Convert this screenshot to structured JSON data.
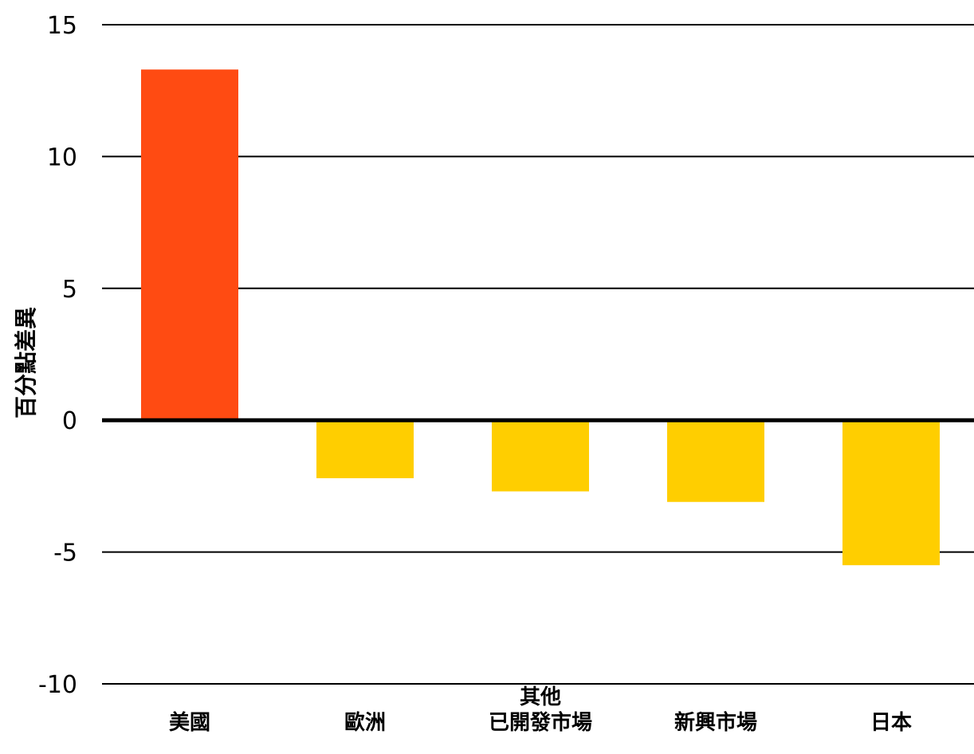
{
  "chart_data": {
    "type": "bar",
    "title": "",
    "xlabel": "",
    "ylabel": "百分點差異",
    "ylim": [
      -10,
      15
    ],
    "yticks": [
      15,
      10,
      5,
      0,
      -5,
      -10
    ],
    "ytick_labels": [
      "15",
      "10",
      "5",
      "0",
      "-5",
      "-10"
    ],
    "grid": true,
    "legend": "none",
    "categories": [
      [
        "美國"
      ],
      [
        "歐洲"
      ],
      [
        "其他",
        "已開發市場"
      ],
      [
        "新興市場"
      ],
      [
        "日本"
      ]
    ],
    "values": [
      13.3,
      -2.2,
      -2.7,
      -3.1,
      -5.5
    ],
    "colors": {
      "positive": "#FF4B12",
      "negative": "#FFCE00",
      "gridline": "#000000",
      "zero_line": "#000000"
    }
  }
}
